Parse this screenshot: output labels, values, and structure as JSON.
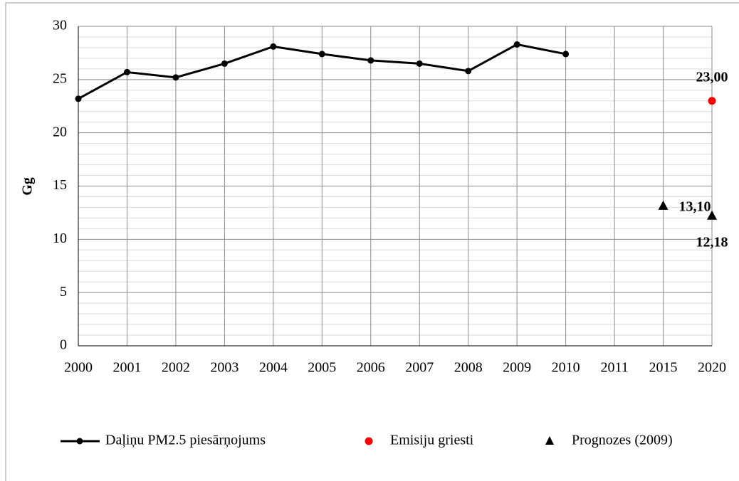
{
  "chart_data": {
    "type": "line",
    "ylabel": "Gg",
    "categories": [
      "2000",
      "2001",
      "2002",
      "2003",
      "2004",
      "2005",
      "2006",
      "2007",
      "2008",
      "2009",
      "2010",
      "2011",
      "2015",
      "2020"
    ],
    "series": [
      {
        "name": "Daļiņu PM2.5 piesārņojums",
        "color": "#000000",
        "marker": "circle",
        "line": true,
        "values": [
          23.2,
          25.7,
          25.2,
          26.5,
          28.1,
          27.4,
          26.8,
          26.5,
          25.8,
          28.3,
          27.4,
          null,
          null,
          null
        ]
      },
      {
        "name": "Emisiju griesti",
        "color": "#ff0000",
        "marker": "circle",
        "line": false,
        "values": [
          null,
          null,
          null,
          null,
          null,
          null,
          null,
          null,
          null,
          null,
          null,
          null,
          null,
          23.0
        ],
        "value_labels": [
          null,
          null,
          null,
          null,
          null,
          null,
          null,
          null,
          null,
          null,
          null,
          null,
          null,
          "23,00"
        ]
      },
      {
        "name": "Prognozes (2009)",
        "color": "#000000",
        "marker": "triangle",
        "line": false,
        "values": [
          null,
          null,
          null,
          null,
          null,
          null,
          null,
          null,
          null,
          null,
          null,
          null,
          13.1,
          12.18
        ],
        "value_labels": [
          null,
          null,
          null,
          null,
          null,
          null,
          null,
          null,
          null,
          null,
          null,
          null,
          "13,10",
          "12,18"
        ]
      }
    ],
    "ylim": [
      0,
      30
    ],
    "yticks": [
      0,
      5,
      10,
      15,
      20,
      25,
      30
    ],
    "grid": true,
    "legend": "bottom"
  }
}
